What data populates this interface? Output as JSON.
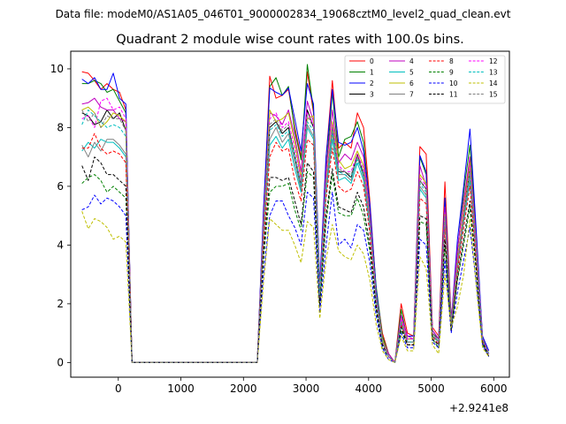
{
  "figure": {
    "suptitle": "Data file: modeM0/AS1A05_046T01_9000002834_19068cztM0_level2_quad_clean.evt"
  },
  "chart_data": {
    "type": "line",
    "title": "Quadrant 2 module wise count rates with 100.0s bins.",
    "xlabel": "",
    "ylabel": "",
    "x_offset_label": "+2.9241e8",
    "xlim": [
      -760,
      6250
    ],
    "ylim": [
      -0.5,
      10.6
    ],
    "xticks": [
      {
        "value": 0,
        "label": "0"
      },
      {
        "value": 1000,
        "label": "1000"
      },
      {
        "value": 2000,
        "label": "2000"
      },
      {
        "value": 3000,
        "label": "3000"
      },
      {
        "value": 4000,
        "label": "4000"
      },
      {
        "value": 5000,
        "label": "5000"
      },
      {
        "value": 6000,
        "label": "6000"
      }
    ],
    "yticks": [
      {
        "value": 0,
        "label": "0"
      },
      {
        "value": 2,
        "label": "2"
      },
      {
        "value": 4,
        "label": "4"
      },
      {
        "value": 6,
        "label": "6"
      },
      {
        "value": 8,
        "label": "8"
      },
      {
        "value": 10,
        "label": "10"
      }
    ],
    "grid": false,
    "legend_position": "top-right",
    "legend_columns": 4,
    "x": [
      -580,
      -480,
      -380,
      -280,
      -180,
      -80,
      20,
      120,
      220,
      320,
      420,
      520,
      620,
      720,
      820,
      920,
      1020,
      1120,
      1220,
      1320,
      1420,
      1520,
      1620,
      1720,
      1820,
      1920,
      2020,
      2120,
      2220,
      2320,
      2420,
      2520,
      2620,
      2720,
      2820,
      2920,
      3020,
      3120,
      3220,
      3320,
      3420,
      3520,
      3620,
      3720,
      3820,
      3920,
      4020,
      4120,
      4220,
      4320,
      4420,
      4520,
      4620,
      4720,
      4820,
      4920,
      5020,
      5120,
      5220,
      5320,
      5420,
      5520,
      5620,
      5720,
      5820,
      5920
    ],
    "series": [
      {
        "name": "0",
        "color": "#ff0000",
        "dash": "solid",
        "values": [
          9.9,
          9.85,
          9.6,
          9.3,
          9.5,
          9.3,
          9.2,
          8.6,
          0.0,
          0.0,
          0.0,
          0.0,
          0.0,
          0.0,
          0.0,
          0.0,
          0.0,
          0.0,
          0.0,
          0.0,
          0.0,
          0.0,
          0.0,
          0.0,
          0.0,
          0.0,
          0.0,
          0.0,
          0.0,
          5.0,
          9.75,
          9.0,
          9.1,
          9.3,
          8.0,
          7.0,
          9.9,
          8.5,
          2.6,
          7.0,
          9.6,
          7.3,
          7.5,
          7.3,
          8.5,
          8.0,
          5.5,
          2.5,
          1.0,
          0.3,
          0.0,
          2.0,
          1.0,
          0.9,
          7.35,
          7.1,
          1.2,
          0.9,
          6.15,
          1.5,
          3.5,
          5.2,
          7.0,
          4.0,
          0.9,
          0.3
        ]
      },
      {
        "name": "1",
        "color": "#008000",
        "dash": "solid",
        "values": [
          9.5,
          9.5,
          9.6,
          9.5,
          9.2,
          9.3,
          8.9,
          8.5,
          0.0,
          0.0,
          0.0,
          0.0,
          0.0,
          0.0,
          0.0,
          0.0,
          0.0,
          0.0,
          0.0,
          0.0,
          0.0,
          0.0,
          0.0,
          0.0,
          0.0,
          0.0,
          0.0,
          0.0,
          0.0,
          5.0,
          9.4,
          9.7,
          9.1,
          9.4,
          7.9,
          6.9,
          10.15,
          8.6,
          2.4,
          6.5,
          9.2,
          7.0,
          7.6,
          7.7,
          8.2,
          7.5,
          5.3,
          2.6,
          0.9,
          0.3,
          0.0,
          1.8,
          0.8,
          0.8,
          7.0,
          6.4,
          1.0,
          0.8,
          5.6,
          1.4,
          3.8,
          5.8,
          7.4,
          4.3,
          0.8,
          0.3
        ]
      },
      {
        "name": "2",
        "color": "#0000ff",
        "dash": "solid",
        "values": [
          9.65,
          9.5,
          9.7,
          9.3,
          9.3,
          9.85,
          9.0,
          8.8,
          0.0,
          0.0,
          0.0,
          0.0,
          0.0,
          0.0,
          0.0,
          0.0,
          0.0,
          0.0,
          0.0,
          0.0,
          0.0,
          0.0,
          0.0,
          0.0,
          0.0,
          0.0,
          0.0,
          0.0,
          0.0,
          5.2,
          9.35,
          9.2,
          9.1,
          9.35,
          8.3,
          7.2,
          9.5,
          8.8,
          2.7,
          7.0,
          9.3,
          7.5,
          7.4,
          7.5,
          8.0,
          7.2,
          5.4,
          2.5,
          0.8,
          0.2,
          0.0,
          1.6,
          0.9,
          0.9,
          7.05,
          6.5,
          1.1,
          0.8,
          5.6,
          1.4,
          4.2,
          6.0,
          7.95,
          4.5,
          0.9,
          0.4
        ]
      },
      {
        "name": "3",
        "color": "#000000",
        "dash": "solid",
        "values": [
          8.5,
          8.4,
          8.1,
          8.2,
          8.6,
          8.3,
          8.5,
          7.9,
          0.0,
          0.0,
          0.0,
          0.0,
          0.0,
          0.0,
          0.0,
          0.0,
          0.0,
          0.0,
          0.0,
          0.0,
          0.0,
          0.0,
          0.0,
          0.0,
          0.0,
          0.0,
          0.0,
          0.0,
          0.0,
          4.5,
          8.0,
          8.2,
          7.8,
          8.0,
          7.0,
          6.0,
          8.6,
          8.0,
          2.3,
          6.0,
          8.0,
          6.5,
          6.5,
          6.3,
          7.1,
          6.4,
          4.8,
          2.2,
          0.7,
          0.2,
          0.0,
          1.4,
          0.7,
          0.7,
          6.2,
          5.9,
          0.9,
          0.7,
          5.0,
          1.3,
          3.3,
          5.0,
          6.6,
          3.8,
          0.8,
          0.3
        ]
      },
      {
        "name": "4",
        "color": "#bf00bf",
        "dash": "solid",
        "values": [
          8.8,
          8.85,
          9.0,
          8.7,
          8.6,
          8.6,
          8.3,
          8.2,
          0.0,
          0.0,
          0.0,
          0.0,
          0.0,
          0.0,
          0.0,
          0.0,
          0.0,
          0.0,
          0.0,
          0.0,
          0.0,
          0.0,
          0.0,
          0.0,
          0.0,
          0.0,
          0.0,
          0.0,
          0.0,
          4.8,
          8.5,
          8.4,
          8.1,
          8.6,
          7.7,
          6.5,
          8.9,
          8.2,
          2.5,
          6.5,
          8.6,
          6.8,
          7.1,
          6.9,
          7.5,
          7.0,
          5.0,
          2.3,
          0.8,
          0.3,
          0.0,
          1.6,
          0.9,
          0.8,
          6.7,
          6.0,
          1.1,
          0.8,
          5.3,
          1.4,
          3.9,
          5.5,
          7.0,
          4.1,
          0.8,
          0.3
        ]
      },
      {
        "name": "5",
        "color": "#00bfbf",
        "dash": "solid",
        "values": [
          7.2,
          7.5,
          7.3,
          7.6,
          7.5,
          7.5,
          7.3,
          7.0,
          0.0,
          0.0,
          0.0,
          0.0,
          0.0,
          0.0,
          0.0,
          0.0,
          0.0,
          0.0,
          0.0,
          0.0,
          0.0,
          0.0,
          0.0,
          0.0,
          0.0,
          0.0,
          0.0,
          0.0,
          0.0,
          4.2,
          7.4,
          7.7,
          7.3,
          7.6,
          6.6,
          5.8,
          8.0,
          7.6,
          2.2,
          5.8,
          7.6,
          6.2,
          6.3,
          6.1,
          6.8,
          6.2,
          4.6,
          2.1,
          0.7,
          0.2,
          0.0,
          1.3,
          0.7,
          0.7,
          5.9,
          5.6,
          0.9,
          0.7,
          4.8,
          1.2,
          3.2,
          4.8,
          6.2,
          3.6,
          0.7,
          0.3
        ]
      },
      {
        "name": "6",
        "color": "#bfbf00",
        "dash": "solid",
        "values": [
          8.6,
          8.7,
          8.5,
          8.0,
          8.2,
          8.5,
          8.4,
          8.2,
          0.0,
          0.0,
          0.0,
          0.0,
          0.0,
          0.0,
          0.0,
          0.0,
          0.0,
          0.0,
          0.0,
          0.0,
          0.0,
          0.0,
          0.0,
          0.0,
          0.0,
          0.0,
          0.0,
          0.0,
          0.0,
          4.6,
          8.6,
          8.2,
          8.3,
          8.5,
          7.5,
          6.3,
          8.3,
          8.4,
          2.4,
          6.2,
          8.2,
          6.9,
          6.6,
          6.7,
          7.2,
          6.7,
          4.9,
          2.3,
          0.8,
          0.2,
          0.0,
          1.5,
          0.8,
          0.8,
          6.4,
          6.1,
          1.0,
          0.7,
          5.1,
          1.3,
          3.5,
          5.2,
          6.8,
          4.0,
          0.8,
          0.3
        ]
      },
      {
        "name": "7",
        "color": "#808080",
        "dash": "solid",
        "values": [
          7.4,
          7.0,
          7.5,
          7.2,
          7.6,
          7.6,
          7.4,
          7.1,
          0.0,
          0.0,
          0.0,
          0.0,
          0.0,
          0.0,
          0.0,
          0.0,
          0.0,
          0.0,
          0.0,
          0.0,
          0.0,
          0.0,
          0.0,
          0.0,
          0.0,
          0.0,
          0.0,
          0.0,
          0.0,
          4.3,
          7.6,
          8.0,
          7.5,
          7.8,
          6.8,
          5.9,
          8.1,
          7.7,
          2.3,
          5.9,
          7.8,
          6.4,
          6.4,
          6.2,
          7.0,
          6.3,
          4.7,
          2.2,
          0.7,
          0.2,
          0.0,
          1.4,
          0.7,
          0.7,
          6.0,
          5.7,
          1.0,
          0.7,
          4.9,
          1.3,
          3.3,
          4.9,
          6.4,
          3.7,
          0.8,
          0.3
        ]
      },
      {
        "name": "8",
        "color": "#ff0000",
        "dash": "dashed",
        "values": [
          7.3,
          7.3,
          7.8,
          7.3,
          7.1,
          7.2,
          7.1,
          6.8,
          0.0,
          0.0,
          0.0,
          0.0,
          0.0,
          0.0,
          0.0,
          0.0,
          0.0,
          0.0,
          0.0,
          0.0,
          0.0,
          0.0,
          0.0,
          0.0,
          0.0,
          0.0,
          0.0,
          0.0,
          0.0,
          4.0,
          7.0,
          7.5,
          7.2,
          7.3,
          6.2,
          5.5,
          7.6,
          7.4,
          2.1,
          5.6,
          7.3,
          6.0,
          5.8,
          5.9,
          6.5,
          6.0,
          4.4,
          2.0,
          0.6,
          0.2,
          0.0,
          1.3,
          0.6,
          0.6,
          5.6,
          5.4,
          0.9,
          0.6,
          4.6,
          1.2,
          3.1,
          4.6,
          6.0,
          3.5,
          0.7,
          0.3
        ]
      },
      {
        "name": "9",
        "color": "#008000",
        "dash": "dashed",
        "values": [
          6.1,
          6.3,
          6.4,
          6.2,
          5.8,
          6.0,
          5.8,
          5.6,
          0.0,
          0.0,
          0.0,
          0.0,
          0.0,
          0.0,
          0.0,
          0.0,
          0.0,
          0.0,
          0.0,
          0.0,
          0.0,
          0.0,
          0.0,
          0.0,
          0.0,
          0.0,
          0.0,
          0.0,
          0.0,
          3.5,
          5.8,
          6.0,
          6.0,
          6.1,
          5.2,
          4.5,
          6.5,
          6.3,
          1.9,
          4.8,
          6.4,
          5.1,
          5.0,
          5.0,
          5.6,
          5.0,
          3.8,
          1.8,
          0.5,
          0.2,
          0.0,
          1.1,
          0.6,
          0.6,
          4.8,
          4.7,
          0.8,
          0.5,
          4.0,
          1.1,
          2.8,
          4.0,
          5.3,
          3.1,
          0.6,
          0.2
        ]
      },
      {
        "name": "10",
        "color": "#0000ff",
        "dash": "dashed",
        "values": [
          5.2,
          5.3,
          5.7,
          5.4,
          5.6,
          5.5,
          5.3,
          5.0,
          0.0,
          0.0,
          0.0,
          0.0,
          0.0,
          0.0,
          0.0,
          0.0,
          0.0,
          0.0,
          0.0,
          0.0,
          0.0,
          0.0,
          0.0,
          0.0,
          0.0,
          0.0,
          0.0,
          0.0,
          0.0,
          3.0,
          5.0,
          5.5,
          5.5,
          5.0,
          4.6,
          4.0,
          5.8,
          5.6,
          1.7,
          4.0,
          5.8,
          4.0,
          4.2,
          3.9,
          4.7,
          4.5,
          3.4,
          1.6,
          0.5,
          0.1,
          0.0,
          1.0,
          0.5,
          0.5,
          4.2,
          4.0,
          0.7,
          0.5,
          3.5,
          1.0,
          2.4,
          3.5,
          4.6,
          2.7,
          0.6,
          0.2
        ]
      },
      {
        "name": "11",
        "color": "#000000",
        "dash": "dashed",
        "values": [
          6.7,
          6.2,
          7.0,
          6.8,
          6.4,
          6.4,
          6.2,
          6.0,
          0.0,
          0.0,
          0.0,
          0.0,
          0.0,
          0.0,
          0.0,
          0.0,
          0.0,
          0.0,
          0.0,
          0.0,
          0.0,
          0.0,
          0.0,
          0.0,
          0.0,
          0.0,
          0.0,
          0.0,
          0.0,
          3.7,
          6.3,
          6.3,
          6.2,
          6.3,
          5.5,
          4.7,
          6.8,
          6.5,
          2.0,
          5.0,
          6.6,
          5.3,
          5.2,
          5.1,
          5.8,
          5.3,
          4.0,
          1.9,
          0.6,
          0.2,
          0.0,
          1.2,
          0.6,
          0.6,
          5.0,
          4.9,
          0.8,
          0.6,
          4.2,
          1.1,
          2.9,
          4.2,
          5.5,
          3.2,
          0.7,
          0.2
        ]
      },
      {
        "name": "12",
        "color": "#ff00ff",
        "dash": "dashed",
        "values": [
          8.3,
          8.4,
          8.0,
          8.9,
          9.0,
          8.6,
          8.7,
          8.3,
          0.0,
          0.0,
          0.0,
          0.0,
          0.0,
          0.0,
          0.0,
          0.0,
          0.0,
          0.0,
          0.0,
          0.0,
          0.0,
          0.0,
          0.0,
          0.0,
          0.0,
          0.0,
          0.0,
          0.0,
          0.0,
          4.6,
          8.3,
          8.5,
          8.0,
          8.2,
          7.3,
          6.2,
          8.5,
          8.1,
          2.4,
          6.1,
          8.1,
          6.7,
          6.5,
          6.5,
          7.1,
          6.6,
          4.8,
          2.2,
          0.7,
          0.2,
          0.0,
          1.5,
          0.8,
          0.8,
          6.3,
          6.0,
          1.0,
          0.7,
          5.1,
          1.3,
          3.5,
          5.1,
          6.7,
          3.9,
          0.8,
          0.3
        ]
      },
      {
        "name": "13",
        "color": "#00bfbf",
        "dash": "dashed",
        "values": [
          8.1,
          8.6,
          8.4,
          8.2,
          8.0,
          8.1,
          8.0,
          7.7,
          0.0,
          0.0,
          0.0,
          0.0,
          0.0,
          0.0,
          0.0,
          0.0,
          0.0,
          0.0,
          0.0,
          0.0,
          0.0,
          0.0,
          0.0,
          0.0,
          0.0,
          0.0,
          0.0,
          0.0,
          0.0,
          4.4,
          7.9,
          8.1,
          7.7,
          7.9,
          7.0,
          6.0,
          8.2,
          7.9,
          2.3,
          6.0,
          7.9,
          6.5,
          6.4,
          6.3,
          6.9,
          6.4,
          4.7,
          2.2,
          0.7,
          0.2,
          0.0,
          1.4,
          0.7,
          0.7,
          6.1,
          5.8,
          1.0,
          0.7,
          5.0,
          1.3,
          3.4,
          5.0,
          6.5,
          3.8,
          0.8,
          0.3
        ]
      },
      {
        "name": "14",
        "color": "#bfbf00",
        "dash": "dashed",
        "values": [
          5.15,
          4.55,
          4.9,
          4.8,
          4.6,
          4.2,
          4.3,
          4.1,
          0.0,
          0.0,
          0.0,
          0.0,
          0.0,
          0.0,
          0.0,
          0.0,
          0.0,
          0.0,
          0.0,
          0.0,
          0.0,
          0.0,
          0.0,
          0.0,
          0.0,
          0.0,
          0.0,
          0.0,
          0.0,
          2.7,
          4.9,
          4.7,
          4.5,
          4.5,
          4.0,
          3.4,
          4.8,
          4.6,
          1.5,
          3.5,
          4.7,
          3.8,
          3.6,
          3.5,
          4.0,
          3.7,
          2.8,
          1.3,
          0.4,
          0.1,
          0.0,
          0.9,
          0.4,
          0.4,
          3.6,
          3.2,
          0.6,
          0.3,
          3.0,
          1.2,
          1.9,
          3.0,
          4.9,
          2.6,
          0.5,
          0.2
        ]
      },
      {
        "name": "15",
        "color": "#808080",
        "dash": "dashed",
        "values": [
          8.6,
          8.2,
          8.5,
          8.0,
          8.4,
          8.3,
          8.3,
          7.9,
          0.0,
          0.0,
          0.0,
          0.0,
          0.0,
          0.0,
          0.0,
          0.0,
          0.0,
          0.0,
          0.0,
          0.0,
          0.0,
          0.0,
          0.0,
          0.0,
          0.0,
          0.0,
          0.0,
          0.0,
          0.0,
          4.5,
          8.1,
          8.3,
          7.9,
          8.1,
          7.1,
          6.1,
          8.4,
          8.0,
          2.3,
          6.0,
          8.0,
          6.6,
          6.5,
          6.4,
          7.0,
          6.5,
          4.8,
          2.2,
          0.7,
          0.2,
          0.0,
          1.4,
          0.7,
          0.7,
          6.2,
          5.9,
          1.0,
          0.7,
          5.0,
          1.3,
          3.4,
          5.0,
          6.6,
          3.8,
          0.8,
          0.3
        ]
      }
    ]
  }
}
